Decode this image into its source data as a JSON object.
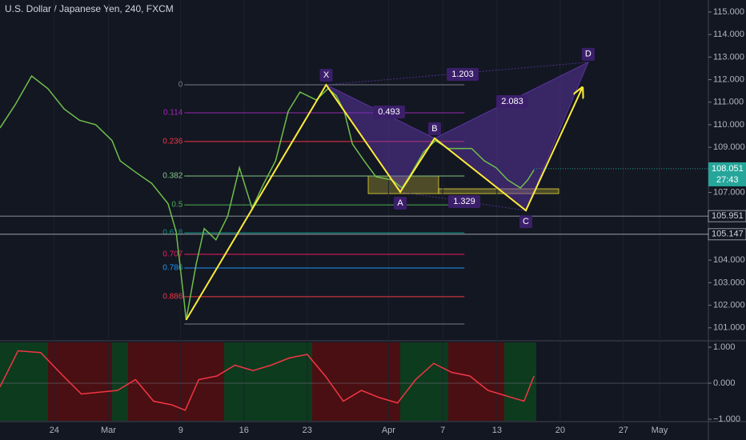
{
  "chart_data": [
    {
      "type": "line",
      "title": "U.S. Dollar / Japanese Yen, 240, FXCM",
      "color": "#6fbf4a",
      "x": [
        -6.0,
        -4.3,
        -2.5,
        -0.7,
        1.1,
        2.8,
        4.6,
        6.4,
        7.3,
        9.0,
        10.8,
        12.6,
        13.5,
        14.4,
        14.6,
        15.7,
        16.6,
        17.9,
        19.2,
        20.5,
        21.9,
        23.2,
        24.5,
        25.9,
        27.2,
        29.0,
        30.3,
        31.2,
        32.1,
        33.0,
        34.3,
        35.6,
        37.4,
        38.5,
        39.6,
        40.9,
        42.2,
        43.6,
        44.9,
        46.2,
        47.6,
        48.9,
        50.2,
        51.6,
        52.4,
        53.1
      ],
      "values": [
        109.86,
        110.9,
        112.16,
        111.6,
        110.7,
        110.2,
        110.0,
        109.3,
        108.4,
        107.9,
        107.4,
        106.5,
        105.25,
        102.1,
        101.35,
        103.8,
        105.4,
        104.9,
        105.95,
        108.1,
        106.3,
        107.4,
        108.4,
        110.6,
        111.45,
        111.1,
        111.6,
        111.3,
        110.6,
        109.15,
        108.4,
        107.7,
        107.55,
        107.2,
        107.9,
        108.8,
        109.3,
        108.95,
        108.95,
        108.95,
        108.4,
        108.1,
        107.55,
        107.2,
        107.55,
        108.0
      ],
      "xlim": [
        -6.0,
        72.4
      ],
      "xticks": [
        {
          "value": 0,
          "label": "24"
        },
        {
          "value": 6,
          "label": "Mar"
        },
        {
          "value": 14,
          "label": "9"
        },
        {
          "value": 21,
          "label": "16"
        },
        {
          "value": 28,
          "label": "23"
        },
        {
          "value": 37,
          "label": "Apr"
        },
        {
          "value": 43,
          "label": "7"
        },
        {
          "value": 49,
          "label": "13"
        },
        {
          "value": 56,
          "label": "20"
        },
        {
          "value": 63,
          "label": "27"
        },
        {
          "value": 67,
          "label": "May"
        }
      ],
      "ylim": [
        100.46,
        115.53
      ],
      "yticks": [
        {
          "value": 101,
          "label": "101.000"
        },
        {
          "value": 102,
          "label": "102.000"
        },
        {
          "value": 103,
          "label": "103.000"
        },
        {
          "value": 104,
          "label": "104.000"
        },
        {
          "value": 105,
          "label": "105.000"
        },
        {
          "value": 106,
          "label": "106.000"
        },
        {
          "value": 107,
          "label": "107.000"
        },
        {
          "value": 108,
          "label": "108.000"
        },
        {
          "value": 109,
          "label": "109.000"
        },
        {
          "value": 110,
          "label": "110.000"
        },
        {
          "value": 111,
          "label": "111.000"
        },
        {
          "value": 112,
          "label": "112.000"
        },
        {
          "value": 113,
          "label": "113.000"
        },
        {
          "value": 114,
          "label": "114.000"
        },
        {
          "value": 115,
          "label": "115.000"
        }
      ],
      "grid": false,
      "fib_x": [
        14.4,
        45.4
      ],
      "fib_levels": [
        {
          "ratio": "0",
          "price": 111.77,
          "color": "#787b86"
        },
        {
          "ratio": "0.114",
          "price": 110.53,
          "color": "#9c27b0"
        },
        {
          "ratio": "0.236",
          "price": 109.26,
          "color": "#f23645"
        },
        {
          "ratio": "0.382",
          "price": 107.73,
          "color": "#81c784"
        },
        {
          "ratio": "0.5",
          "price": 106.45,
          "color": "#4caf50"
        },
        {
          "ratio": "0.618",
          "price": 105.21,
          "color": "#089981"
        },
        {
          "ratio": "0.707",
          "price": 104.26,
          "color": "#e91e63"
        },
        {
          "ratio": "0.786",
          "price": 103.65,
          "color": "#2196f3"
        },
        {
          "ratio": "0.886",
          "price": 102.38,
          "color": "#f23645"
        },
        {
          "price": 101.17,
          "color": "#787b86"
        }
      ],
      "pattern": {
        "points": [
          {
            "label": "X",
            "x": 30.1,
            "y": 111.77
          },
          {
            "label": "A",
            "x": 38.3,
            "y": 107.02
          },
          {
            "label": "B",
            "x": 42.1,
            "y": 109.4
          },
          {
            "label": "C",
            "x": 52.2,
            "y": 106.2
          },
          {
            "label": "D",
            "x": 59.1,
            "y": 112.77
          }
        ],
        "ratios": [
          1.203,
          0.493,
          2.083,
          1.329
        ]
      },
      "projection": {
        "x": [
          14.6,
          30.1,
          38.3,
          42.1,
          52.2,
          58.4
        ],
        "y": [
          101.35,
          111.77,
          107.02,
          109.4,
          106.2,
          111.6
        ],
        "color": "#ffeb3b"
      },
      "last_price": 108.051,
      "countdown": "27:43",
      "levels": [
        105.951,
        105.147
      ]
    },
    {
      "type": "line",
      "color": "#f23645",
      "x": [
        -6,
        -4,
        -1.5,
        1,
        3,
        5,
        7,
        9,
        11,
        13,
        14.5,
        16,
        18,
        20,
        22,
        24,
        26,
        28,
        30,
        32,
        34,
        36,
        38,
        40,
        42,
        44,
        46,
        48,
        50,
        52,
        53.1
      ],
      "values": [
        -0.1,
        0.9,
        0.85,
        0.2,
        -0.3,
        -0.25,
        -0.2,
        0.1,
        -0.5,
        -0.6,
        -0.75,
        0.1,
        0.2,
        0.5,
        0.35,
        0.5,
        0.7,
        0.8,
        0.2,
        -0.5,
        -0.2,
        -0.4,
        -0.55,
        0.1,
        0.55,
        0.3,
        0.2,
        -0.2,
        -0.35,
        -0.5,
        0.2
      ],
      "xlim": [
        -6.0,
        72.4
      ],
      "ylim": [
        -1.044,
        1.133
      ],
      "yticks": [
        {
          "value": 1,
          "label": "1.000"
        },
        {
          "value": 0,
          "label": "0.000"
        },
        {
          "value": -1,
          "label": "−1.000"
        }
      ]
    }
  ]
}
